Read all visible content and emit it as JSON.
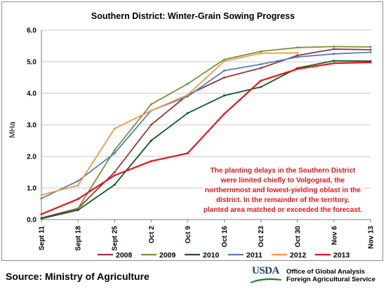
{
  "chart_data": {
    "type": "line",
    "title": "Southern District: Winter-Grain Sowing Progress",
    "ylabel": "MHa",
    "xlabel": "",
    "ylim": [
      0,
      6
    ],
    "yticks": [
      "0.0",
      "1.0",
      "2.0",
      "3.0",
      "4.0",
      "5.0",
      "6.0"
    ],
    "grid": true,
    "legend_position": "bottom",
    "categories": [
      "Sept 11",
      "Sept 18",
      "Sept 25",
      "Oct 2",
      "Oct 9",
      "Oct 16",
      "Oct 23",
      "Oct 30",
      "Nov 6",
      "Nov 13"
    ],
    "series": [
      {
        "name": "2008",
        "color": "#943634",
        "values": [
          0.05,
          0.35,
          1.5,
          3.0,
          3.95,
          4.5,
          4.8,
          5.2,
          5.4,
          5.38
        ]
      },
      {
        "name": "2009",
        "color": "#76933c",
        "values": [
          null,
          0.35,
          2.2,
          3.65,
          4.3,
          5.07,
          5.33,
          5.45,
          5.48,
          5.47
        ]
      },
      {
        "name": "2010",
        "color": "#0d5e1c",
        "values": [
          0.03,
          0.3,
          1.1,
          2.5,
          3.37,
          3.93,
          4.2,
          4.8,
          5.03,
          5.02
        ]
      },
      {
        "name": "2011",
        "color": "#4f81bd",
        "values": [
          0.67,
          1.22,
          2.1,
          3.45,
          3.9,
          4.72,
          4.92,
          5.15,
          5.25,
          5.3
        ]
      },
      {
        "name": "2012",
        "color": "#f79646",
        "values": [
          0.78,
          1.08,
          2.88,
          3.45,
          3.95,
          5.02,
          5.27,
          5.28,
          null,
          null
        ]
      },
      {
        "name": "2013",
        "color": "#e8141b",
        "values": [
          0.17,
          0.65,
          1.4,
          1.85,
          2.1,
          3.35,
          4.4,
          4.77,
          4.95,
          4.98
        ]
      }
    ],
    "annotation": [
      "The planting delays in the Southern District",
      "were limited chiefly to Volgograd, the",
      "northernmost and lowest-yielding oblast in the",
      "district.  In the remainder of the territory,",
      "planted area matched or exceeded the forecast."
    ]
  },
  "footer": {
    "source": "Source:  Ministry of Agriculture",
    "logo_text": "USDA",
    "agency_line1": "Office of Global Analysis",
    "agency_line2": "Foreign Agricultural Service"
  }
}
